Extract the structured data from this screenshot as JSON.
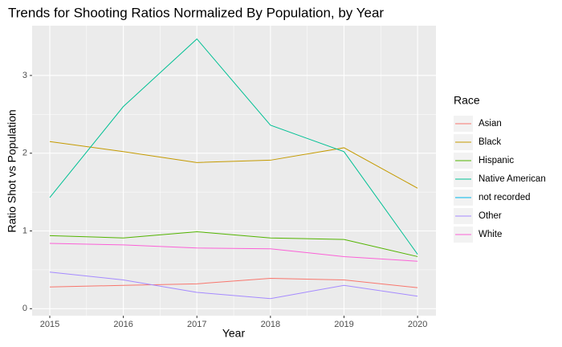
{
  "chart_data": {
    "type": "line",
    "title": "Trends for Shooting Ratios Normalized By Population, by Year",
    "x_label": "Year",
    "y_label": "Ratio Shot vs Population",
    "legend_title": "Race",
    "legend": "right",
    "grid": true,
    "x": [
      2015,
      2016,
      2017,
      2018,
      2019,
      2020
    ],
    "xlim": [
      2014.76,
      2020.25
    ],
    "xticks": [
      2015,
      2016,
      2017,
      2018,
      2019,
      2020
    ],
    "ylim": [
      -0.09,
      3.64
    ],
    "yticks": [
      0,
      1,
      2,
      3
    ],
    "series": [
      {
        "name": "Asian",
        "color": "#F8766D",
        "values": [
          0.28,
          0.3,
          0.32,
          0.39,
          0.37,
          0.27
        ]
      },
      {
        "name": "Black",
        "color": "#C49A00",
        "values": [
          2.15,
          2.02,
          1.88,
          1.91,
          2.07,
          1.55
        ]
      },
      {
        "name": "Hispanic",
        "color": "#53B400",
        "values": [
          0.94,
          0.91,
          0.99,
          0.91,
          0.89,
          0.67
        ]
      },
      {
        "name": "Native American",
        "color": "#00C094",
        "values": [
          1.43,
          2.6,
          3.47,
          2.36,
          2.02,
          0.7
        ]
      },
      {
        "name": "not recorded",
        "color": "#00B6EB",
        "values": [
          null,
          null,
          null,
          null,
          null,
          null
        ]
      },
      {
        "name": "Other",
        "color": "#A58AFF",
        "values": [
          0.47,
          0.37,
          0.21,
          0.13,
          0.3,
          0.16
        ]
      },
      {
        "name": "White",
        "color": "#FB61D7",
        "values": [
          0.84,
          0.82,
          0.78,
          0.77,
          0.67,
          0.61
        ]
      }
    ]
  }
}
